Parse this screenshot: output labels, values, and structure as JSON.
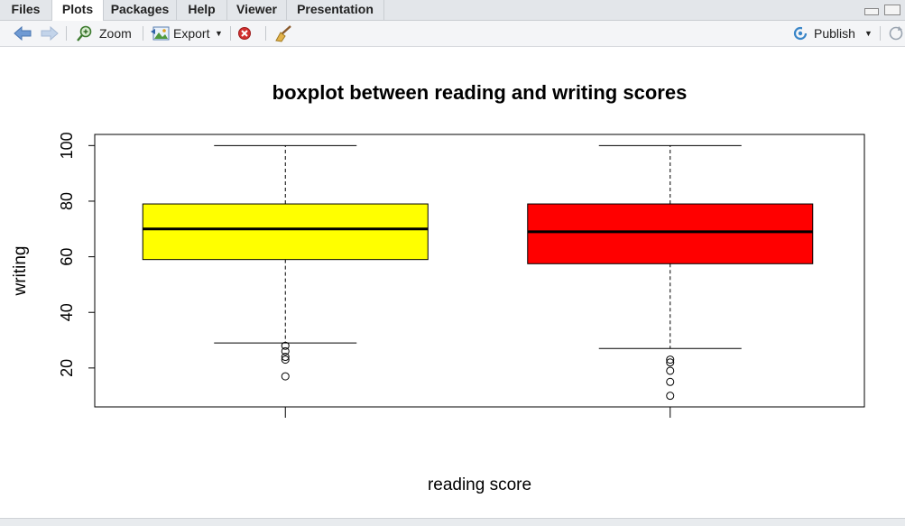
{
  "tabs": [
    {
      "label": "Files",
      "active": false
    },
    {
      "label": "Plots",
      "active": true
    },
    {
      "label": "Packages",
      "active": false
    },
    {
      "label": "Help",
      "active": false
    },
    {
      "label": "Viewer",
      "active": false
    },
    {
      "label": "Presentation",
      "active": false
    }
  ],
  "toolbar": {
    "back_icon": "arrow-left-icon",
    "forward_icon": "arrow-right-icon",
    "zoom_label": "Zoom",
    "export_label": "Export",
    "remove_icon": "remove-plot-icon",
    "clear_icon": "broom-icon",
    "publish_label": "Publish",
    "refresh_icon": "refresh-icon"
  },
  "chart_data": {
    "type": "box",
    "title": "boxplot between reading and writing scores",
    "xlabel": "reading score",
    "ylabel": "writing",
    "ylim": [
      6,
      104
    ],
    "yticks": [
      20,
      40,
      60,
      80,
      100
    ],
    "grid": false,
    "series": [
      {
        "color": "#ffff00",
        "whisker_low": 29,
        "q1": 59,
        "median": 70,
        "q3": 79,
        "whisker_high": 100,
        "outliers": [
          17,
          23,
          24,
          26,
          28
        ]
      },
      {
        "color": "#ff0000",
        "whisker_low": 27,
        "q1": 57.5,
        "median": 69,
        "q3": 79,
        "whisker_high": 100,
        "outliers": [
          10,
          15,
          19,
          22,
          23
        ]
      }
    ]
  }
}
